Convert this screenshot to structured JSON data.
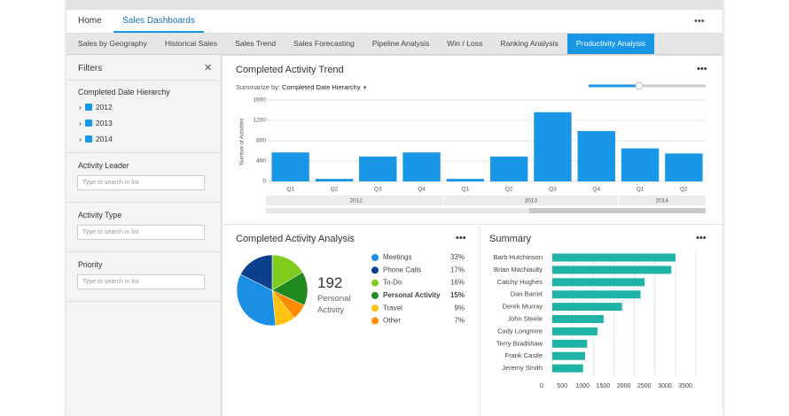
{
  "nav": {
    "tabs": [
      "Home",
      "Sales Dashboards"
    ],
    "active": 1,
    "more": "•••"
  },
  "subtabs": {
    "items": [
      "Sales by Geography",
      "Historical Sales",
      "Sales Trend",
      "Sales Forecasting",
      "Pipeline Analysis",
      "Win / Loss",
      "Ranking Analysis",
      "Productivity Analysis"
    ],
    "active": 7
  },
  "filters": {
    "title": "Filters",
    "close": "✕",
    "hierarchy": {
      "title": "Completed Date Hierarchy",
      "items": [
        "2012",
        "2013",
        "2014"
      ]
    },
    "searches": [
      {
        "title": "Activity Leader",
        "placeholder": "Type to search in list"
      },
      {
        "title": "Activity Type",
        "placeholder": "Type to search in list"
      },
      {
        "title": "Priority",
        "placeholder": "Type to search in list"
      }
    ]
  },
  "chart_data": [
    {
      "type": "bar",
      "title": "Completed Activity Trend",
      "more": "•••",
      "summarize_label": "Summarize by:",
      "summarize_value": "Completed Date Hierarchy",
      "ylabel": "Number of Activities",
      "color": "#1a96e6",
      "groups": [
        {
          "label": "2012",
          "categories": [
            "Q1",
            "Q2",
            "Q3",
            "Q4"
          ],
          "values": [
            570,
            50,
            490,
            570
          ]
        },
        {
          "label": "2013",
          "categories": [
            "Q1",
            "Q2",
            "Q3",
            "Q4"
          ],
          "values": [
            50,
            490,
            1360,
            990
          ]
        },
        {
          "label": "2014",
          "categories": [
            "Q1",
            "Q2"
          ],
          "values": [
            650,
            550
          ]
        }
      ],
      "ylim": [
        0,
        1600
      ],
      "yticks": [
        0,
        400,
        800,
        1200,
        1600
      ],
      "grid": true
    },
    {
      "type": "pie",
      "title": "Completed Activity Analysis",
      "more": "•••",
      "categories": [
        "Meetings",
        "Phone Calls",
        "To-Do",
        "Personal Activity",
        "Travel",
        "Other"
      ],
      "values": [
        33,
        17,
        16,
        15,
        9,
        7
      ],
      "value_labels": [
        "33%",
        "17%",
        "16%",
        "15%",
        "9%",
        "7%"
      ],
      "colors": [
        "#1a8fe3",
        "#0d3f8f",
        "#7fcc1c",
        "#1f8a1f",
        "#ffc20e",
        "#ff8c00"
      ],
      "highlight": 3,
      "center_value": 192,
      "center_label": "Personal Activity"
    },
    {
      "type": "hbar",
      "title": "Summary",
      "more": "•••",
      "categories": [
        "Barb Hutchinson",
        "Brian MacNaulty",
        "Catchy Hughes",
        "Dan Barret",
        "Derek Murray",
        "John Steele",
        "Cady Longmire",
        "Terry Bradshaw",
        "Frank Castle",
        "Jeremy Smith"
      ],
      "values": [
        3000,
        2900,
        2250,
        2150,
        1700,
        1250,
        1100,
        850,
        800,
        750
      ],
      "color": "#1fb3a8",
      "xlim": [
        0,
        3500
      ],
      "xticks": [
        0,
        500,
        1000,
        1500,
        2000,
        2500,
        3000,
        3500
      ],
      "grid": true
    }
  ]
}
